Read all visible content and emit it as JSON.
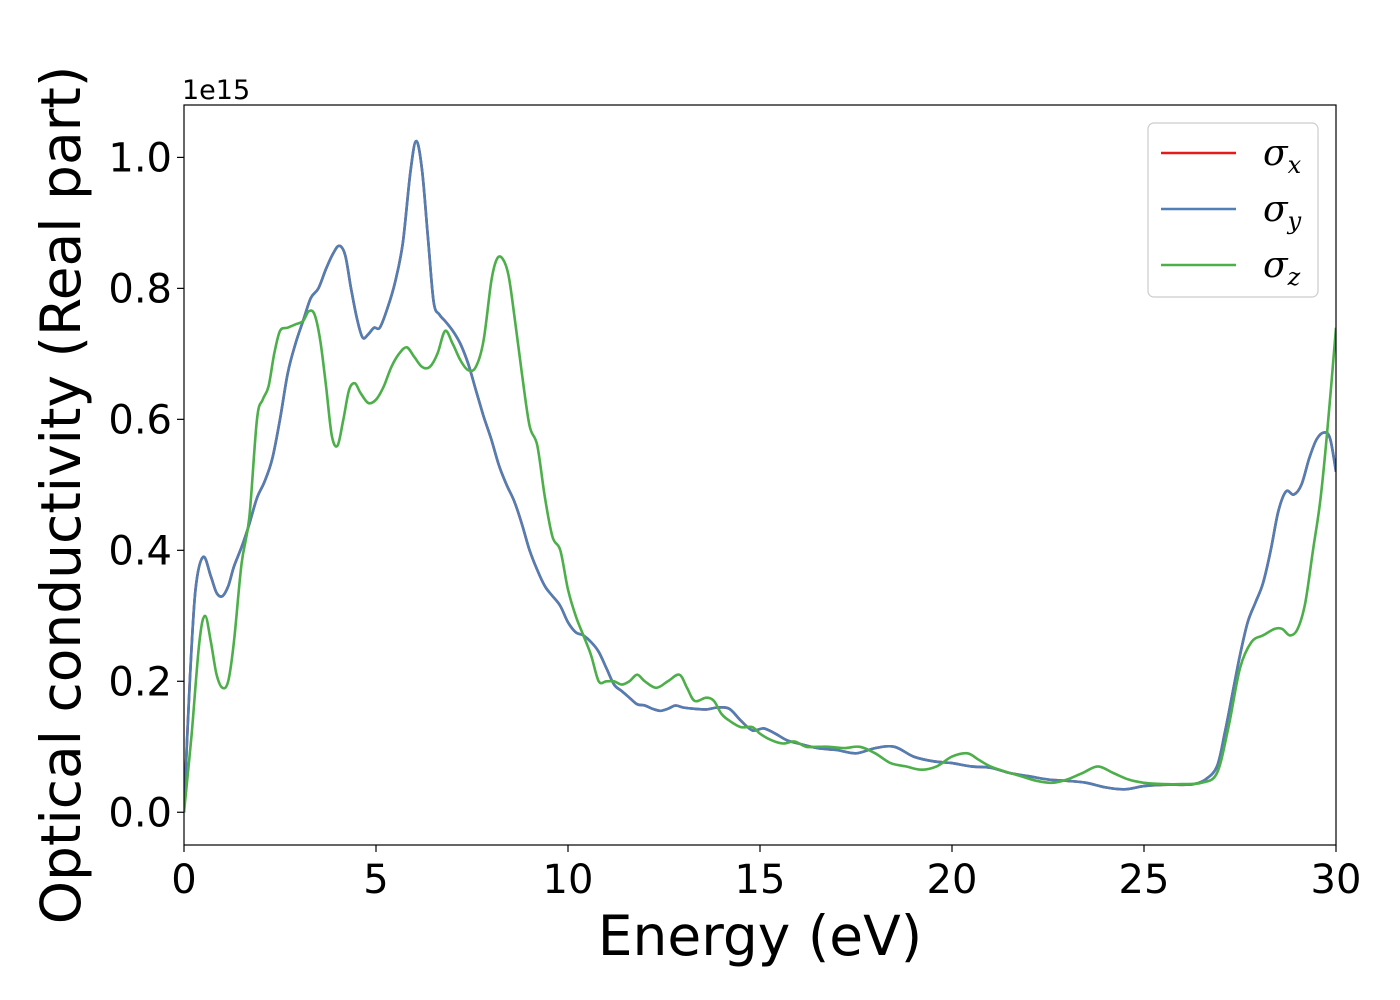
{
  "chart_data": {
    "type": "line",
    "xlabel": "Energy (eV)",
    "ylabel": "Optical conductivity (Real part)",
    "y_offset_text": "1e15",
    "xlim": [
      0,
      30
    ],
    "ylim": [
      -0.05,
      1.08
    ],
    "x_ticks": [
      0,
      5,
      10,
      15,
      20,
      25,
      30
    ],
    "y_ticks": [
      0.0,
      0.2,
      0.4,
      0.6,
      0.8,
      1.0
    ],
    "x_tick_labels": [
      "0",
      "5",
      "10",
      "15",
      "20",
      "25",
      "30"
    ],
    "y_tick_labels": [
      "0.0",
      "0.2",
      "0.4",
      "0.6",
      "0.8",
      "1.0"
    ],
    "grid": false,
    "legend_position": "top-right",
    "series": [
      {
        "name": "σx",
        "symbol": "σ",
        "subscript": "x",
        "color": "#e41a1c",
        "x": [
          0,
          0.15,
          0.3,
          0.5,
          0.7,
          0.85,
          1.0,
          1.15,
          1.3,
          1.5,
          1.7,
          1.9,
          2.1,
          2.3,
          2.5,
          2.7,
          2.9,
          3.1,
          3.3,
          3.5,
          3.7,
          3.9,
          4.05,
          4.2,
          4.35,
          4.5,
          4.65,
          4.8,
          4.95,
          5.1,
          5.3,
          5.5,
          5.7,
          5.9,
          6.05,
          6.2,
          6.35,
          6.5,
          6.65,
          6.8,
          7.0,
          7.2,
          7.4,
          7.6,
          7.8,
          8.0,
          8.2,
          8.4,
          8.6,
          8.8,
          9.0,
          9.2,
          9.4,
          9.6,
          9.8,
          10.0,
          10.2,
          10.4,
          10.6,
          10.8,
          11.0,
          11.2,
          11.4,
          11.6,
          11.8,
          12.0,
          12.2,
          12.4,
          12.6,
          12.8,
          13.0,
          13.3,
          13.6,
          13.9,
          14.2,
          14.5,
          14.8,
          15.1,
          15.4,
          15.7,
          16.0,
          16.5,
          17.0,
          17.5,
          18.0,
          18.5,
          19.0,
          19.5,
          20.0,
          20.5,
          21.0,
          21.5,
          22.0,
          22.5,
          23.0,
          23.5,
          24.0,
          24.5,
          25.0,
          25.5,
          26.0,
          26.3,
          26.6,
          26.9,
          27.1,
          27.3,
          27.5,
          27.7,
          27.9,
          28.1,
          28.3,
          28.5,
          28.7,
          28.9,
          29.1,
          29.3,
          29.5,
          29.7,
          29.85,
          30.0
        ],
        "y": [
          0.0,
          0.2,
          0.34,
          0.39,
          0.36,
          0.335,
          0.33,
          0.345,
          0.375,
          0.405,
          0.44,
          0.48,
          0.505,
          0.54,
          0.6,
          0.67,
          0.715,
          0.75,
          0.785,
          0.8,
          0.83,
          0.855,
          0.865,
          0.85,
          0.8,
          0.755,
          0.725,
          0.73,
          0.74,
          0.74,
          0.77,
          0.81,
          0.87,
          0.98,
          1.025,
          0.98,
          0.88,
          0.78,
          0.76,
          0.75,
          0.735,
          0.715,
          0.685,
          0.645,
          0.605,
          0.57,
          0.53,
          0.5,
          0.475,
          0.44,
          0.4,
          0.37,
          0.345,
          0.33,
          0.315,
          0.29,
          0.275,
          0.27,
          0.26,
          0.245,
          0.22,
          0.195,
          0.185,
          0.175,
          0.165,
          0.163,
          0.158,
          0.155,
          0.158,
          0.163,
          0.16,
          0.158,
          0.157,
          0.16,
          0.158,
          0.14,
          0.125,
          0.128,
          0.12,
          0.11,
          0.105,
          0.098,
          0.095,
          0.09,
          0.098,
          0.1,
          0.085,
          0.078,
          0.075,
          0.07,
          0.068,
          0.06,
          0.055,
          0.05,
          0.048,
          0.045,
          0.038,
          0.035,
          0.04,
          0.042,
          0.042,
          0.043,
          0.05,
          0.07,
          0.12,
          0.18,
          0.24,
          0.29,
          0.32,
          0.35,
          0.4,
          0.46,
          0.49,
          0.485,
          0.5,
          0.54,
          0.57,
          0.58,
          0.57,
          0.52
        ]
      },
      {
        "name": "σy",
        "symbol": "σ",
        "subscript": "y",
        "color": "#4f7fb4",
        "x": [
          0,
          0.15,
          0.3,
          0.5,
          0.7,
          0.85,
          1.0,
          1.15,
          1.3,
          1.5,
          1.7,
          1.9,
          2.1,
          2.3,
          2.5,
          2.7,
          2.9,
          3.1,
          3.3,
          3.5,
          3.7,
          3.9,
          4.05,
          4.2,
          4.35,
          4.5,
          4.65,
          4.8,
          4.95,
          5.1,
          5.3,
          5.5,
          5.7,
          5.9,
          6.05,
          6.2,
          6.35,
          6.5,
          6.65,
          6.8,
          7.0,
          7.2,
          7.4,
          7.6,
          7.8,
          8.0,
          8.2,
          8.4,
          8.6,
          8.8,
          9.0,
          9.2,
          9.4,
          9.6,
          9.8,
          10.0,
          10.2,
          10.4,
          10.6,
          10.8,
          11.0,
          11.2,
          11.4,
          11.6,
          11.8,
          12.0,
          12.2,
          12.4,
          12.6,
          12.8,
          13.0,
          13.3,
          13.6,
          13.9,
          14.2,
          14.5,
          14.8,
          15.1,
          15.4,
          15.7,
          16.0,
          16.5,
          17.0,
          17.5,
          18.0,
          18.5,
          19.0,
          19.5,
          20.0,
          20.5,
          21.0,
          21.5,
          22.0,
          22.5,
          23.0,
          23.5,
          24.0,
          24.5,
          25.0,
          25.5,
          26.0,
          26.3,
          26.6,
          26.9,
          27.1,
          27.3,
          27.5,
          27.7,
          27.9,
          28.1,
          28.3,
          28.5,
          28.7,
          28.9,
          29.1,
          29.3,
          29.5,
          29.7,
          29.85,
          30.0
        ],
        "y": [
          0.0,
          0.2,
          0.34,
          0.39,
          0.36,
          0.335,
          0.33,
          0.345,
          0.375,
          0.405,
          0.44,
          0.48,
          0.505,
          0.54,
          0.6,
          0.67,
          0.715,
          0.75,
          0.785,
          0.8,
          0.83,
          0.855,
          0.865,
          0.85,
          0.8,
          0.755,
          0.725,
          0.73,
          0.74,
          0.74,
          0.77,
          0.81,
          0.87,
          0.98,
          1.025,
          0.98,
          0.88,
          0.78,
          0.76,
          0.75,
          0.735,
          0.715,
          0.685,
          0.645,
          0.605,
          0.57,
          0.53,
          0.5,
          0.475,
          0.44,
          0.4,
          0.37,
          0.345,
          0.33,
          0.315,
          0.29,
          0.275,
          0.27,
          0.26,
          0.245,
          0.22,
          0.195,
          0.185,
          0.175,
          0.165,
          0.163,
          0.158,
          0.155,
          0.158,
          0.163,
          0.16,
          0.158,
          0.157,
          0.16,
          0.158,
          0.14,
          0.125,
          0.128,
          0.12,
          0.11,
          0.105,
          0.098,
          0.095,
          0.09,
          0.098,
          0.1,
          0.085,
          0.078,
          0.075,
          0.07,
          0.068,
          0.06,
          0.055,
          0.05,
          0.048,
          0.045,
          0.038,
          0.035,
          0.04,
          0.042,
          0.042,
          0.043,
          0.05,
          0.07,
          0.12,
          0.18,
          0.24,
          0.29,
          0.32,
          0.35,
          0.4,
          0.46,
          0.49,
          0.485,
          0.5,
          0.54,
          0.57,
          0.58,
          0.57,
          0.52
        ]
      },
      {
        "name": "σz",
        "symbol": "σ",
        "subscript": "z",
        "color": "#4daf4a",
        "x": [
          0,
          0.2,
          0.4,
          0.55,
          0.7,
          0.85,
          1.0,
          1.15,
          1.3,
          1.5,
          1.7,
          1.9,
          2.05,
          2.2,
          2.35,
          2.5,
          2.7,
          2.9,
          3.1,
          3.25,
          3.4,
          3.55,
          3.7,
          3.85,
          4.0,
          4.15,
          4.3,
          4.45,
          4.6,
          4.8,
          5.0,
          5.2,
          5.4,
          5.6,
          5.8,
          6.0,
          6.2,
          6.4,
          6.6,
          6.8,
          7.0,
          7.2,
          7.4,
          7.6,
          7.8,
          8.0,
          8.15,
          8.3,
          8.45,
          8.6,
          8.8,
          9.0,
          9.2,
          9.4,
          9.6,
          9.8,
          10.0,
          10.2,
          10.4,
          10.6,
          10.8,
          11.0,
          11.2,
          11.4,
          11.6,
          11.8,
          12.0,
          12.3,
          12.6,
          12.9,
          13.1,
          13.3,
          13.6,
          13.8,
          14.0,
          14.2,
          14.5,
          14.8,
          15.0,
          15.3,
          15.6,
          15.9,
          16.2,
          16.5,
          16.8,
          17.2,
          17.6,
          18.0,
          18.4,
          18.8,
          19.2,
          19.6,
          20.0,
          20.4,
          20.7,
          21.0,
          21.4,
          21.8,
          22.2,
          22.6,
          23.0,
          23.4,
          23.8,
          24.2,
          24.6,
          25.0,
          25.5,
          26.0,
          26.5,
          26.9,
          27.2,
          27.5,
          27.8,
          28.1,
          28.4,
          28.6,
          28.8,
          29.0,
          29.2,
          29.4,
          29.6,
          29.8,
          30.0
        ],
        "y": [
          0.0,
          0.12,
          0.26,
          0.3,
          0.26,
          0.21,
          0.19,
          0.2,
          0.26,
          0.38,
          0.45,
          0.6,
          0.63,
          0.65,
          0.7,
          0.735,
          0.74,
          0.745,
          0.75,
          0.765,
          0.76,
          0.72,
          0.65,
          0.575,
          0.56,
          0.6,
          0.645,
          0.655,
          0.64,
          0.625,
          0.63,
          0.65,
          0.68,
          0.7,
          0.71,
          0.695,
          0.68,
          0.68,
          0.7,
          0.735,
          0.715,
          0.69,
          0.675,
          0.68,
          0.72,
          0.81,
          0.845,
          0.845,
          0.82,
          0.76,
          0.67,
          0.59,
          0.56,
          0.48,
          0.42,
          0.4,
          0.34,
          0.3,
          0.27,
          0.24,
          0.2,
          0.2,
          0.2,
          0.195,
          0.2,
          0.21,
          0.2,
          0.19,
          0.2,
          0.21,
          0.19,
          0.17,
          0.175,
          0.17,
          0.15,
          0.14,
          0.13,
          0.13,
          0.12,
          0.11,
          0.105,
          0.108,
          0.1,
          0.1,
          0.1,
          0.098,
          0.1,
          0.09,
          0.075,
          0.07,
          0.065,
          0.07,
          0.085,
          0.09,
          0.08,
          0.07,
          0.062,
          0.055,
          0.048,
          0.045,
          0.05,
          0.06,
          0.07,
          0.06,
          0.05,
          0.045,
          0.043,
          0.043,
          0.045,
          0.06,
          0.13,
          0.22,
          0.26,
          0.27,
          0.28,
          0.28,
          0.27,
          0.28,
          0.32,
          0.4,
          0.48,
          0.6,
          0.74
        ]
      }
    ]
  }
}
